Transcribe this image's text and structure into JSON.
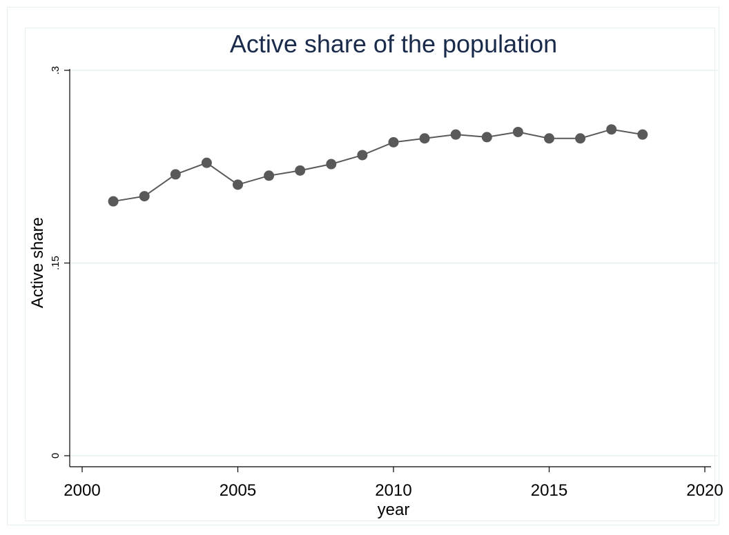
{
  "chart_data": {
    "type": "line",
    "title": "Active share of the population",
    "xlabel": "year",
    "ylabel": "Active share",
    "xlim": [
      2000,
      2020
    ],
    "ylim": [
      0,
      0.3
    ],
    "x_ticks": [
      2000,
      2005,
      2010,
      2015,
      2020
    ],
    "x_tick_labels": [
      "2000",
      "2005",
      "2010",
      "2015",
      "2020"
    ],
    "y_ticks": [
      0,
      0.15,
      0.3
    ],
    "y_tick_labels": [
      "0",
      ".15",
      ".3"
    ],
    "grid": true,
    "series": [
      {
        "color": "#595959",
        "x": [
          2001,
          2002,
          2003,
          2004,
          2005,
          2006,
          2007,
          2008,
          2009,
          2010,
          2011,
          2012,
          2013,
          2014,
          2015,
          2016,
          2017,
          2018
        ],
        "values": [
          0.198,
          0.202,
          0.219,
          0.228,
          0.211,
          0.218,
          0.222,
          0.227,
          0.234,
          0.244,
          0.247,
          0.25,
          0.248,
          0.252,
          0.247,
          0.247,
          0.254,
          0.25
        ]
      }
    ],
    "colors": {
      "grid": "#e6f0f0",
      "title": "#1a2a4a",
      "axis": "#000000"
    }
  }
}
